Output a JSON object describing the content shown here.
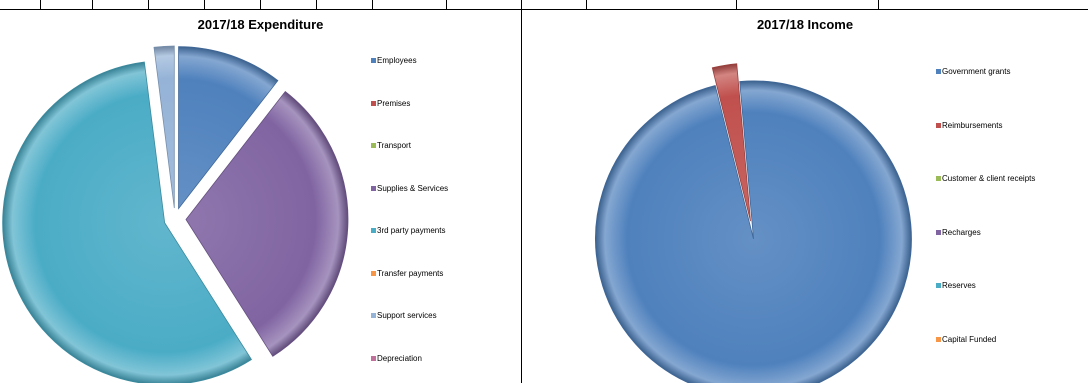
{
  "chart_data": [
    {
      "type": "pie",
      "title": "2017/18 Expenditure",
      "legend": "right",
      "exploded": true,
      "series": [
        {
          "values": [
            10.5,
            0,
            0,
            30.5,
            57,
            0,
            2,
            0
          ]
        }
      ],
      "categories": [
        "Employees",
        "Premises",
        "Transport",
        "Supplies & Services",
        "3rd party payments",
        "Transfer payments",
        "Support services",
        "Depreciation"
      ],
      "colors": [
        "#4f81bd",
        "#c0504d",
        "#9bbb59",
        "#8064a2",
        "#4bacc6",
        "#f79646",
        "#95b3d7",
        "#c0709a"
      ]
    },
    {
      "type": "pie",
      "title": "2017/18 Income",
      "legend": "right",
      "exploded": true,
      "series": [
        {
          "values": [
            97.5,
            2.5,
            0,
            0,
            0,
            0
          ]
        }
      ],
      "categories": [
        "Government grants",
        "Reimbursements",
        "Customer & client receipts",
        "Recharges",
        "Reserves",
        "Capital Funded"
      ],
      "colors": [
        "#4f81bd",
        "#c0504d",
        "#9bbb59",
        "#8064a2",
        "#4bacc6",
        "#f79646"
      ]
    }
  ]
}
